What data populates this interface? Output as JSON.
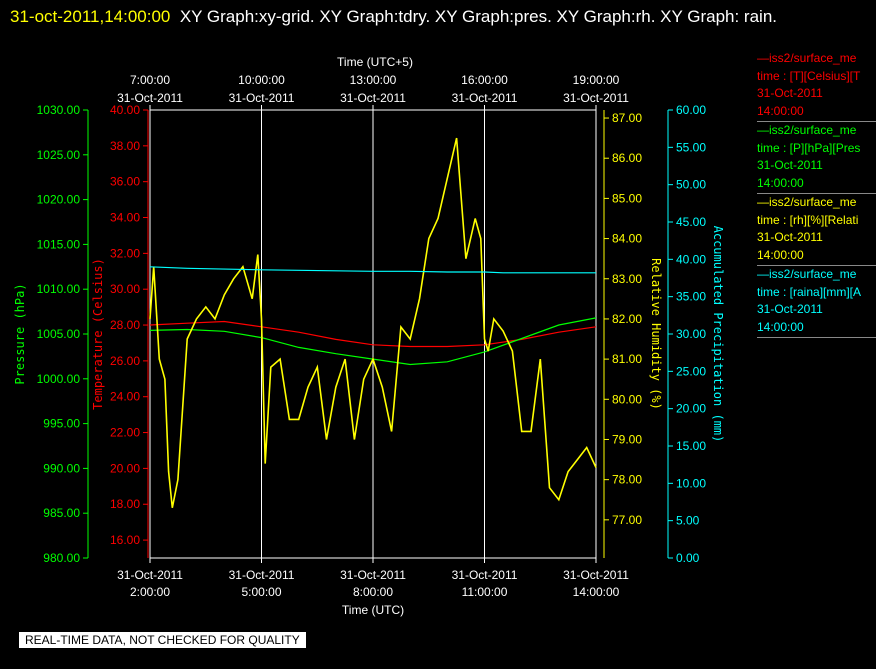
{
  "header": {
    "timestamp": "31-oct-2011,14:00:00",
    "title": "XY Graph:xy-grid.  XY Graph:tdry.  XY Graph:pres.  XY Graph:rh.  XY Graph: rain."
  },
  "colors": {
    "temperature": "#ff0000",
    "pressure": "#00ff00",
    "humidity": "#ffff00",
    "precip": "#00ffff"
  },
  "legend": [
    {
      "color": "#ff0000",
      "source": "—iss2/surface_me",
      "field": "time : [T][Celsius][T",
      "date": "31-Oct-2011",
      "time": "14:00:00"
    },
    {
      "color": "#00ff00",
      "source": "—iss2/surface_me",
      "field": "time : [P][hPa][Pres",
      "date": "31-Oct-2011",
      "time": "14:00:00"
    },
    {
      "color": "#ffff00",
      "source": "—iss2/surface_me",
      "field": "time : [rh][%][Relati",
      "date": "31-Oct-2011",
      "time": "14:00:00"
    },
    {
      "color": "#00ffff",
      "source": "—iss2/surface_me",
      "field": "time : [raina][mm][A",
      "date": "31-Oct-2011",
      "time": "14:00:00"
    }
  ],
  "notice": "REAL-TIME DATA, NOT CHECKED FOR QUALITY",
  "chart_data": {
    "type": "line",
    "grid": true,
    "x_bottom": {
      "label": "Time (UTC)",
      "ticks": [
        {
          "hour": 2,
          "date": "31-Oct-2011",
          "time": "2:00:00"
        },
        {
          "hour": 5,
          "date": "31-Oct-2011",
          "time": "5:00:00"
        },
        {
          "hour": 8,
          "date": "31-Oct-2011",
          "time": "8:00:00"
        },
        {
          "hour": 11,
          "date": "31-Oct-2011",
          "time": "11:00:00"
        },
        {
          "hour": 14,
          "date": "31-Oct-2011",
          "time": "14:00:00"
        }
      ],
      "range": [
        2,
        14
      ]
    },
    "x_top": {
      "label": "Time (UTC+5)",
      "ticks": [
        {
          "time": "7:00:00",
          "date": "31-Oct-2011"
        },
        {
          "time": "10:00:00",
          "date": "31-Oct-2011"
        },
        {
          "time": "13:00:00",
          "date": "31-Oct-2011"
        },
        {
          "time": "16:00:00",
          "date": "31-Oct-2011"
        },
        {
          "time": "19:00:00",
          "date": "31-Oct-2011"
        }
      ]
    },
    "axes": {
      "pressure": {
        "label": "Pressure (hPa)",
        "range": [
          980,
          1030
        ],
        "ticks": [
          "980.00",
          "985.00",
          "990.00",
          "995.00",
          "1000.00",
          "1005.00",
          "1010.00",
          "1015.00",
          "1020.00",
          "1025.00",
          "1030.00"
        ]
      },
      "temperature": {
        "label": "Temperature (Celsius)",
        "range": [
          15,
          40
        ],
        "ticks": [
          "16.00",
          "18.00",
          "20.00",
          "22.00",
          "24.00",
          "26.00",
          "28.00",
          "30.00",
          "32.00",
          "34.00",
          "36.00",
          "38.00",
          "40.00"
        ]
      },
      "humidity": {
        "label": "Relative Humidity (%)",
        "range": [
          76.05,
          87.2
        ],
        "ticks": [
          "77.00",
          "78.00",
          "79.00",
          "80.00",
          "81.00",
          "82.00",
          "83.00",
          "84.00",
          "85.00",
          "86.00",
          "87.00"
        ]
      },
      "precip": {
        "label": "Accumulated Precipitation (mm)",
        "range": [
          0,
          60
        ],
        "ticks": [
          "0.00",
          "5.00",
          "10.00",
          "15.00",
          "20.00",
          "25.00",
          "30.00",
          "35.00",
          "40.00",
          "45.00",
          "50.00",
          "55.00",
          "60.00"
        ]
      }
    },
    "series": [
      {
        "name": "time : [T][Celsius][T",
        "axis": "temperature",
        "color": "#ff0000",
        "x": [
          2.0,
          3.0,
          4.0,
          5.0,
          6.0,
          7.0,
          8.0,
          9.0,
          10.0,
          11.0,
          12.0,
          13.0,
          14.0
        ],
        "y": [
          28.0,
          28.1,
          28.2,
          27.9,
          27.6,
          27.2,
          26.9,
          26.8,
          26.8,
          26.9,
          27.2,
          27.6,
          27.9
        ]
      },
      {
        "name": "time : [P][hPa][Pres",
        "axis": "pressure",
        "color": "#00ff00",
        "x": [
          2.0,
          3.0,
          4.0,
          5.0,
          6.0,
          7.0,
          8.0,
          9.0,
          10.0,
          11.0,
          12.0,
          13.0,
          14.0
        ],
        "y": [
          1005.4,
          1005.5,
          1005.3,
          1004.6,
          1003.5,
          1002.8,
          1002.2,
          1001.6,
          1001.9,
          1003.0,
          1004.5,
          1006.0,
          1006.8
        ]
      },
      {
        "name": "time : [rh][%][Relati",
        "axis": "humidity",
        "color": "#ffff00",
        "x": [
          2.0,
          2.1,
          2.25,
          2.4,
          2.5,
          2.6,
          2.75,
          3.0,
          3.25,
          3.5,
          3.75,
          4.0,
          4.25,
          4.5,
          4.75,
          4.9,
          5.0,
          5.1,
          5.25,
          5.5,
          5.75,
          6.0,
          6.25,
          6.5,
          6.75,
          7.0,
          7.25,
          7.5,
          7.75,
          8.0,
          8.25,
          8.5,
          8.75,
          9.0,
          9.25,
          9.5,
          9.75,
          10.0,
          10.25,
          10.5,
          10.75,
          10.9,
          11.0,
          11.1,
          11.25,
          11.5,
          11.75,
          12.0,
          12.25,
          12.5,
          12.75,
          13.0,
          13.25,
          13.5,
          13.75,
          14.0
        ],
        "y": [
          82.0,
          83.3,
          81.0,
          80.5,
          78.2,
          77.3,
          78.0,
          81.5,
          82.0,
          82.3,
          82.0,
          82.6,
          83.0,
          83.3,
          82.5,
          83.6,
          82.0,
          78.4,
          80.8,
          81.0,
          79.5,
          79.5,
          80.3,
          80.8,
          79.0,
          80.3,
          81.0,
          79.0,
          80.5,
          81.0,
          80.3,
          79.2,
          81.8,
          81.5,
          82.5,
          84.0,
          84.5,
          85.5,
          86.5,
          83.5,
          84.5,
          84.0,
          81.5,
          81.2,
          82.0,
          81.7,
          81.2,
          79.2,
          79.2,
          81.0,
          77.8,
          77.5,
          78.2,
          78.5,
          78.8,
          78.3
        ]
      },
      {
        "name": "time : [raina][mm][A",
        "axis": "precip",
        "color": "#00ffff",
        "x": [
          2.0,
          3.0,
          5.0,
          8.0,
          9.0,
          10.0,
          11.0,
          11.5,
          14.0
        ],
        "y": [
          39.0,
          38.8,
          38.6,
          38.4,
          38.4,
          38.3,
          38.3,
          38.2,
          38.2
        ]
      }
    ]
  }
}
